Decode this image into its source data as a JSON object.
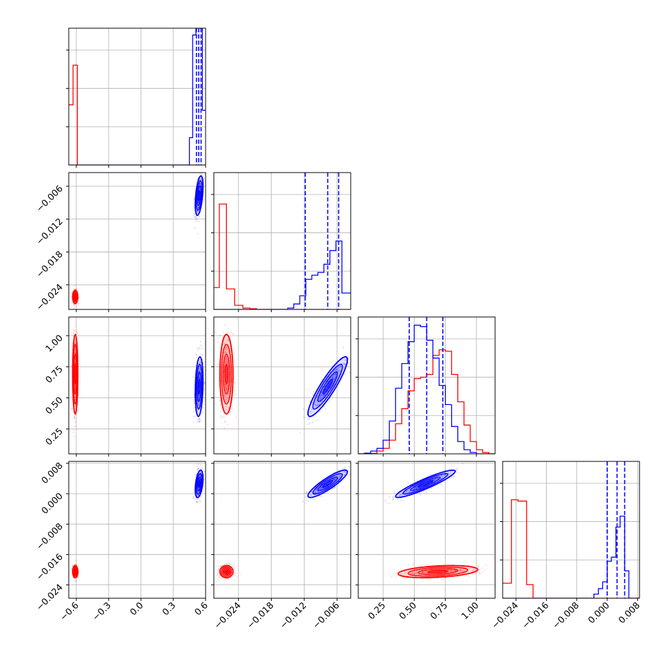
{
  "chart_data": {
    "type": "corner",
    "title": "",
    "parameters": [
      "",
      "",
      "",
      ""
    ],
    "ranges": [
      [
        -0.67,
        0.6
      ],
      [
        -0.0285,
        -0.0035
      ],
      [
        0.05,
        1.15
      ],
      [
        -0.0275,
        0.0085
      ]
    ],
    "ticks": [
      {
        "values": [
          -0.6,
          -0.3,
          0.0,
          0.3,
          0.6
        ],
        "labels": [
          "−0.6",
          "−0.3",
          "0.0",
          "0.3",
          "0.6"
        ]
      },
      {
        "values": [
          -0.024,
          -0.018,
          -0.012,
          -0.006
        ],
        "labels": [
          "−0.024",
          "−0.018",
          "−0.012",
          "−0.006"
        ]
      },
      {
        "values": [
          0.25,
          0.5,
          0.75,
          1.0
        ],
        "labels": [
          "0.25",
          "0.50",
          "0.75",
          "1.00"
        ]
      },
      {
        "values": [
          -0.024,
          -0.016,
          -0.008,
          0.0,
          0.008
        ],
        "labels": [
          "−0.024",
          "−0.016",
          "−0.008",
          "0.000",
          "0.008"
        ]
      }
    ],
    "grid": true,
    "legend": "none",
    "series": [
      {
        "color": "#ff0000",
        "means": [
          -0.61,
          -0.0262,
          0.69,
          -0.0205
        ],
        "stds": [
          0.012,
          0.0006,
          0.16,
          0.0008
        ],
        "corr": [
          [
            0,
            1,
            0.0
          ],
          [
            0,
            2,
            0.0
          ],
          [
            0,
            3,
            0.0
          ],
          [
            1,
            2,
            0.0
          ],
          [
            1,
            3,
            0.0
          ],
          [
            2,
            3,
            0.35
          ]
        ],
        "hist": [
          {
            "edges": [
              -0.67,
              -0.63,
              -0.59,
              0.6
            ],
            "counts": [
              0.44,
              0.73,
              0.0
            ]
          },
          {
            "edges": [
              -0.0285,
              -0.0275,
              -0.0262,
              -0.0247,
              -0.0232,
              -0.0219,
              -0.0207,
              -0.0035
            ],
            "counts": [
              0.16,
              0.77,
              0.15,
              0.03,
              0.01,
              0.005,
              0.0
            ]
          },
          {
            "edges": [
              0.05,
              0.1,
              0.15,
              0.2,
              0.25,
              0.3,
              0.35,
              0.4,
              0.45,
              0.5,
              0.55,
              0.6,
              0.65,
              0.7,
              0.75,
              0.8,
              0.85,
              0.9,
              0.95,
              1.0,
              1.05,
              1.1,
              1.15
            ],
            "counts": [
              0.0,
              0.0,
              0.003,
              0.02,
              0.04,
              0.1,
              0.22,
              0.33,
              0.46,
              0.55,
              0.56,
              0.58,
              0.72,
              0.76,
              0.75,
              0.58,
              0.38,
              0.21,
              0.09,
              0.03,
              0.01,
              0.0
            ]
          },
          {
            "edges": [
              -0.0275,
              -0.0252,
              -0.0235,
              -0.0212,
              -0.0195,
              0.0085
            ],
            "counts": [
              0.11,
              0.72,
              0.71,
              0.1,
              0.0
            ]
          }
        ]
      },
      {
        "color": "#0000ff",
        "means": [
          0.54,
          -0.0077,
          0.59,
          0.0026
        ],
        "stds": [
          0.018,
          0.0018,
          0.12,
          0.0018
        ],
        "corr": [
          [
            0,
            1,
            0.45
          ],
          [
            0,
            2,
            0.2
          ],
          [
            0,
            3,
            0.4
          ],
          [
            1,
            2,
            0.9
          ],
          [
            1,
            3,
            0.88
          ],
          [
            2,
            3,
            0.92
          ]
        ],
        "hist": [
          {
            "edges": [
              -0.67,
              0.45,
              0.48,
              0.51,
              0.54,
              0.57,
              0.6
            ],
            "counts": [
              0.0,
              0.2,
              0.95,
              1.05,
              1.0,
              0.4
            ]
          },
          {
            "edges": [
              -0.0285,
              -0.015,
              -0.0139,
              -0.0128,
              -0.0117,
              -0.0106,
              -0.0095,
              -0.0084,
              -0.0073,
              -0.0062,
              -0.0051,
              -0.0035
            ],
            "counts": [
              0.0,
              0.01,
              0.04,
              0.1,
              0.22,
              0.25,
              0.27,
              0.33,
              0.43,
              0.5,
              0.12
            ]
          },
          {
            "edges": [
              0.05,
              0.1,
              0.15,
              0.2,
              0.25,
              0.3,
              0.35,
              0.4,
              0.45,
              0.5,
              0.55,
              0.6,
              0.65,
              0.7,
              0.75,
              0.8,
              0.85,
              0.9,
              0.95,
              1.0,
              1.05,
              1.1,
              1.15
            ],
            "counts": [
              0.0,
              0.005,
              0.02,
              0.04,
              0.1,
              0.24,
              0.48,
              0.66,
              0.82,
              0.94,
              0.93,
              0.83,
              0.7,
              0.5,
              0.36,
              0.2,
              0.09,
              0.03,
              0.01,
              0.0,
              0.0,
              0.0
            ]
          },
          {
            "edges": [
              -0.0275,
              -0.0035,
              -0.0023,
              -0.0012,
              0.0,
              0.0011,
              0.0023,
              0.0034,
              0.0046,
              0.0057,
              0.0085
            ],
            "counts": [
              0.0,
              0.03,
              0.07,
              0.12,
              0.27,
              0.3,
              0.52,
              0.6,
              0.2,
              0.0
            ]
          }
        ],
        "quantiles": [
          [
            0.515,
            0.536,
            0.558
          ],
          [
            -0.0118,
            -0.0077,
            -0.0057
          ],
          [
            0.46,
            0.6,
            0.73
          ],
          [
            0.0,
            0.0026,
            0.0046
          ]
        ]
      }
    ]
  }
}
